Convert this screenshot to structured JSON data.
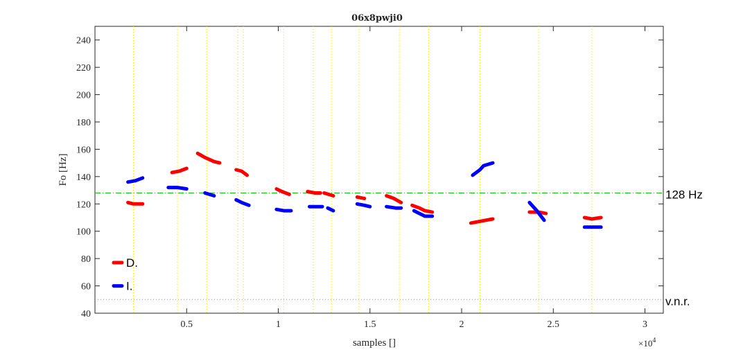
{
  "chart_data": {
    "type": "line",
    "title": "06x8pwji0",
    "xlabel": "samples []",
    "ylabel": "Fo [Hz]",
    "x_exponent_label": "×10",
    "x_exponent_power": "4",
    "xlim": [
      0,
      31000
    ],
    "ylim": [
      40,
      250
    ],
    "xticks": [
      5000,
      10000,
      15000,
      20000,
      25000,
      30000
    ],
    "xtick_labels": [
      "0.5",
      "1",
      "1.5",
      "2",
      "2.5",
      "3"
    ],
    "yticks": [
      40,
      60,
      80,
      100,
      120,
      140,
      160,
      180,
      200,
      220,
      240
    ],
    "grid": false,
    "legend_position": "lower-left",
    "reference_lines": [
      {
        "label": "128 Hz",
        "y": 128,
        "color": "#00cc00",
        "style": "dash-dot"
      },
      {
        "label": "v.n.r.",
        "y": 50,
        "color": "#00bfff",
        "style": "dotted"
      }
    ],
    "vertical_markers": [
      2100,
      4500,
      6100,
      7800,
      8100,
      10300,
      11900,
      12900,
      14400,
      16600,
      18200,
      21000,
      24200,
      27100
    ],
    "series": [
      {
        "name": "D.",
        "color": "#ff0000",
        "segments": [
          [
            [
              1800,
              121
            ],
            [
              2100,
              120
            ],
            [
              2600,
              120
            ]
          ],
          [
            [
              4200,
              143
            ],
            [
              4600,
              144
            ],
            [
              5000,
              146
            ]
          ],
          [
            [
              5600,
              157
            ],
            [
              6000,
              154
            ],
            [
              6500,
              151
            ],
            [
              6800,
              150
            ]
          ],
          [
            [
              7700,
              145
            ],
            [
              8000,
              144
            ],
            [
              8300,
              141
            ]
          ],
          [
            [
              9900,
              131
            ],
            [
              10200,
              129
            ],
            [
              10600,
              127
            ]
          ],
          [
            [
              11600,
              129
            ],
            [
              12000,
              128
            ],
            [
              12300,
              128
            ]
          ],
          [
            [
              12500,
              128
            ],
            [
              13000,
              126
            ]
          ],
          [
            [
              14300,
              125
            ],
            [
              14700,
              124
            ]
          ],
          [
            [
              15900,
              126
            ],
            [
              16300,
              124
            ],
            [
              16700,
              121
            ]
          ],
          [
            [
              17300,
              119
            ],
            [
              17700,
              117
            ],
            [
              18000,
              115
            ],
            [
              18400,
              114
            ]
          ],
          [
            [
              20500,
              106
            ],
            [
              20900,
              107
            ],
            [
              21300,
              108
            ],
            [
              21700,
              109
            ]
          ],
          [
            [
              23700,
              114
            ],
            [
              24200,
              114
            ],
            [
              24600,
              113
            ]
          ],
          [
            [
              26700,
              110
            ],
            [
              27100,
              109
            ],
            [
              27600,
              110
            ]
          ]
        ]
      },
      {
        "name": "I.",
        "color": "#0000ff",
        "segments": [
          [
            [
              1800,
              136
            ],
            [
              2200,
              137
            ],
            [
              2600,
              139
            ]
          ],
          [
            [
              4000,
              132
            ],
            [
              4500,
              132
            ],
            [
              5000,
              131
            ]
          ],
          [
            [
              6000,
              128
            ],
            [
              6500,
              126
            ]
          ],
          [
            [
              7700,
              123
            ],
            [
              8000,
              121
            ],
            [
              8400,
              119
            ]
          ],
          [
            [
              9900,
              116
            ],
            [
              10300,
              115
            ],
            [
              10700,
              115
            ]
          ],
          [
            [
              11700,
              118
            ],
            [
              12100,
              118
            ],
            [
              12400,
              118
            ]
          ],
          [
            [
              12700,
              117
            ],
            [
              13000,
              115
            ]
          ],
          [
            [
              14300,
              120
            ],
            [
              14700,
              119
            ],
            [
              15000,
              118
            ]
          ],
          [
            [
              15900,
              118
            ],
            [
              16400,
              117
            ],
            [
              16700,
              117
            ]
          ],
          [
            [
              17400,
              115
            ],
            [
              17700,
              113
            ],
            [
              18000,
              111
            ],
            [
              18400,
              111
            ]
          ],
          [
            [
              20600,
              141
            ],
            [
              21000,
              145
            ],
            [
              21200,
              148
            ],
            [
              21700,
              150
            ]
          ],
          [
            [
              23700,
              121
            ],
            [
              24100,
              115
            ],
            [
              24500,
              108
            ]
          ],
          [
            [
              26700,
              103
            ],
            [
              27100,
              103
            ],
            [
              27600,
              103
            ]
          ]
        ]
      }
    ]
  }
}
